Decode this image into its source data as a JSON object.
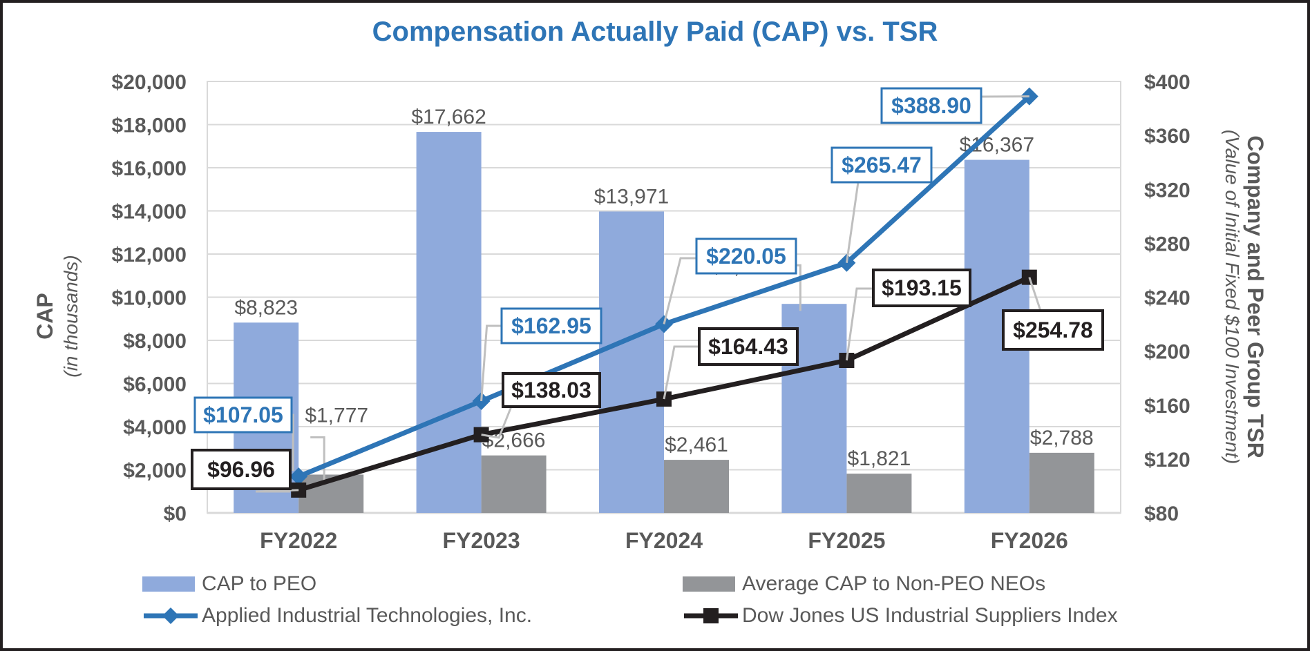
{
  "colors": {
    "title": "#2e75b6",
    "axis_text": "#595959",
    "cap_peo": "#8faadc",
    "cap_neo": "#939598",
    "applied": "#2e75b6",
    "dow": "#231f20",
    "grid": "#d9d9d9",
    "leader": "#bfbfbf"
  },
  "chart_data": {
    "type": "bar",
    "title": "Compensation Actually Paid (CAP) vs. TSR",
    "categories": [
      "FY2022",
      "FY2023",
      "FY2024",
      "FY2025",
      "FY2026"
    ],
    "y_left": {
      "label": "CAP",
      "sublabel": "(in thousands)",
      "ylim": [
        0,
        20000
      ],
      "ticks": [
        "$0",
        "$2,000",
        "$4,000",
        "$6,000",
        "$8,000",
        "$10,000",
        "$12,000",
        "$14,000",
        "$16,000",
        "$18,000",
        "$20,000"
      ]
    },
    "y_right": {
      "label": "Company and Peer Group TSR",
      "sublabel": "(Value of Initial Fixed $100 Investment)",
      "ylim": [
        80,
        400
      ],
      "ticks": [
        "$80",
        "$120",
        "$160",
        "$200",
        "$240",
        "$280",
        "$320",
        "$360",
        "$400"
      ]
    },
    "grid": true,
    "legend_position": "bottom",
    "series": [
      {
        "name": "CAP to PEO",
        "type": "bar",
        "axis": "left",
        "values": [
          8823,
          17662,
          13971,
          9690,
          16367
        ],
        "labels": [
          "$8,823",
          "$17,662",
          "$13,971",
          "$9,690",
          "$16,367"
        ]
      },
      {
        "name": "Average CAP to Non-PEO NEOs",
        "type": "bar",
        "axis": "left",
        "values": [
          1777,
          2666,
          2461,
          1821,
          2788
        ],
        "labels": [
          "$1,777",
          "$2,666",
          "$2,461",
          "$1,821",
          "$2,788"
        ]
      },
      {
        "name": "Applied Industrial Technologies, Inc.",
        "type": "line",
        "axis": "right",
        "marker": "diamond",
        "values": [
          107.05,
          162.95,
          220.05,
          265.47,
          388.9
        ],
        "labels": [
          "$107.05",
          "$162.95",
          "$220.05",
          "$265.47",
          "$388.90"
        ]
      },
      {
        "name": "Dow Jones US Industrial Suppliers Index",
        "type": "line",
        "axis": "right",
        "marker": "square",
        "values": [
          96.96,
          138.03,
          164.43,
          193.15,
          254.78
        ],
        "labels": [
          "$96.96",
          "$138.03",
          "$164.43",
          "$193.15",
          "$254.78"
        ]
      }
    ]
  }
}
